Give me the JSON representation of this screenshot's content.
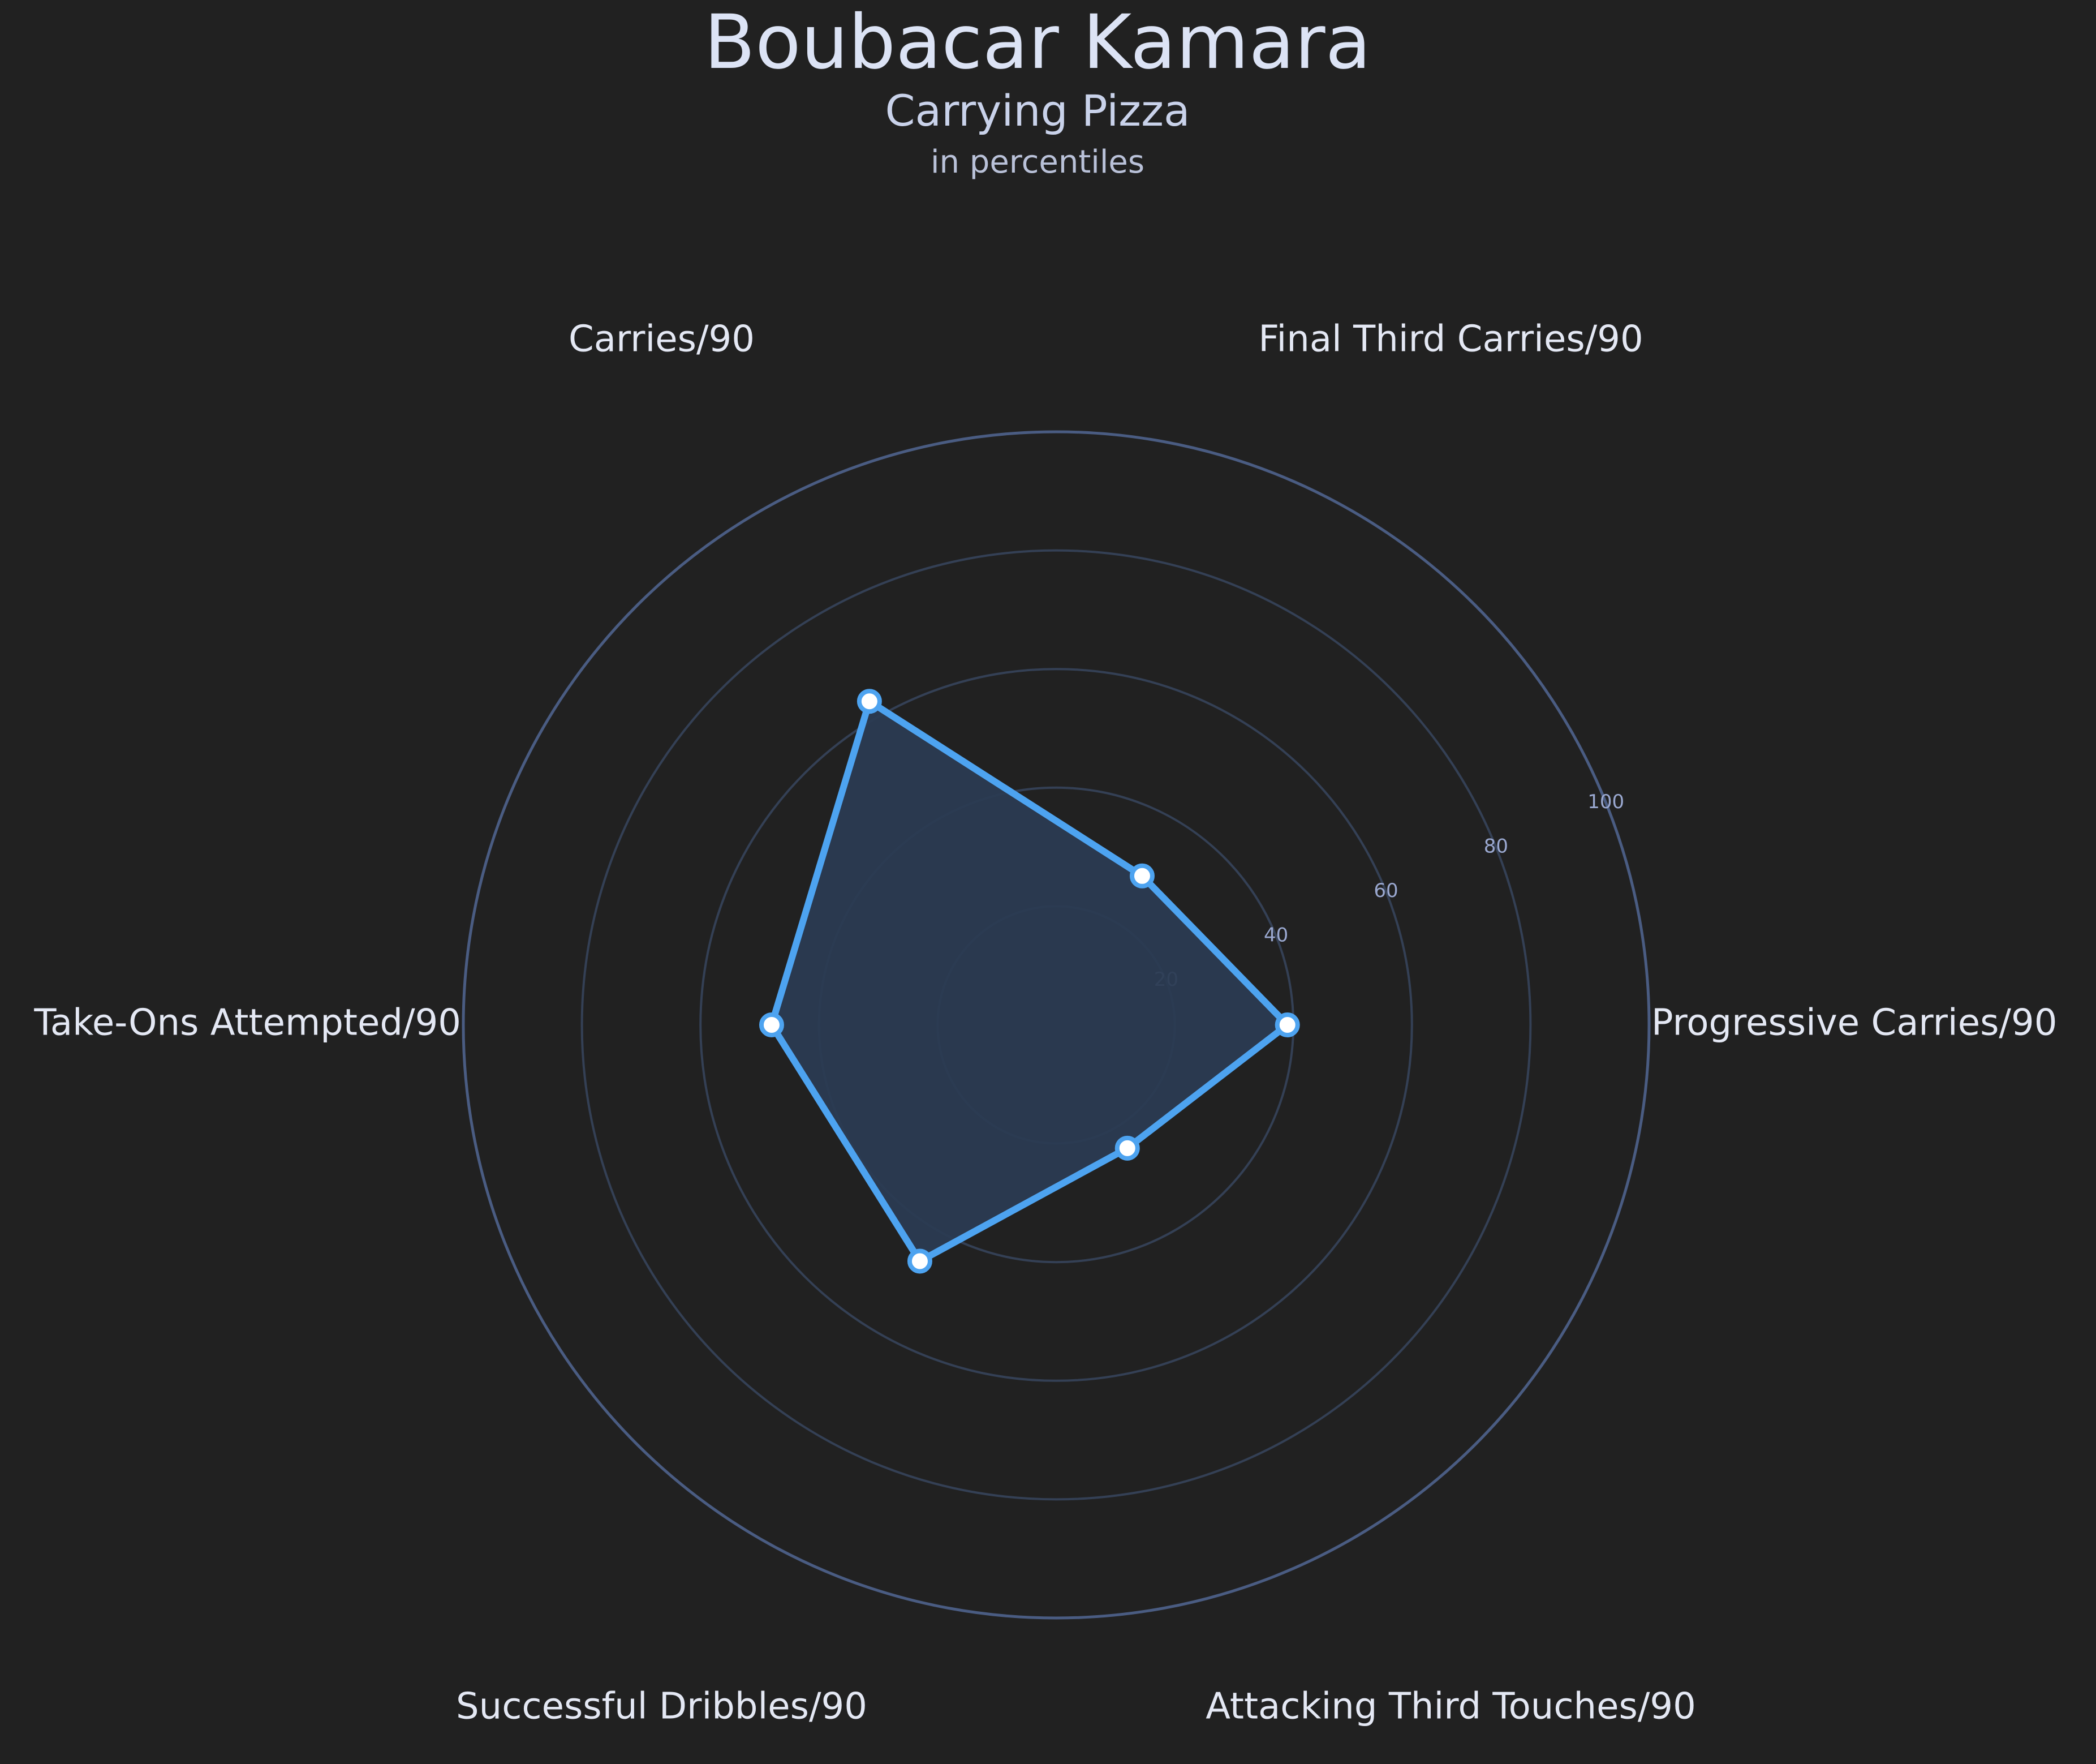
{
  "chart_data": {
    "type": "radar",
    "title": "Boubacar Kamara",
    "subtitle": "Carrying Pizza",
    "subsubtitle": "in percentiles",
    "categories": [
      "Progressive Carries/90",
      "Final Third Carries/90",
      "Carries/90",
      "Take-Ons Attempted/90",
      "Successful Dribbles/90",
      "Attacking Third Touches/90"
    ],
    "series": [
      {
        "values": [
          39,
          29,
          63,
          48,
          46,
          24
        ]
      }
    ],
    "rlim": [
      0,
      100
    ],
    "rticks": [
      20,
      40,
      60,
      80,
      100
    ],
    "rtick_labels": [
      "20",
      "40",
      "60",
      "80",
      "100"
    ],
    "colors": {
      "background": "#212121",
      "series": "#4da3f0",
      "fill": "#2b3b52",
      "grid": "#344055",
      "outer_ring": "#4a5c82",
      "tick_label": "#9aa8d0",
      "text": "#e4e8f4",
      "title": "#dce3f5",
      "subtitle": "#c9d2ea",
      "subsubtitle": "#b9c1d8"
    }
  }
}
